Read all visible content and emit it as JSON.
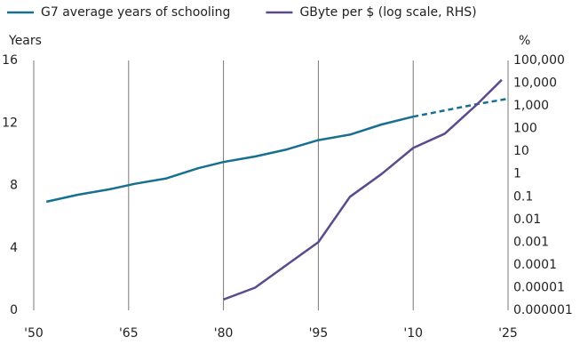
{
  "chart_data": {
    "type": "line",
    "y_label": "Years",
    "y2_label": "%",
    "xlim": [
      1950,
      2025
    ],
    "xticks": [
      {
        "value": 1950,
        "label": "'50"
      },
      {
        "value": 1965,
        "label": "'65"
      },
      {
        "value": 1980,
        "label": "'80"
      },
      {
        "value": 1995,
        "label": "'95"
      },
      {
        "value": 2010,
        "label": "'10"
      },
      {
        "value": 2025,
        "label": "'25"
      }
    ],
    "ylim": [
      0,
      16
    ],
    "yticks": [
      0,
      4,
      8,
      12,
      16
    ],
    "y2_log": true,
    "y2lim": [
      1e-06,
      100000
    ],
    "y2ticks": [
      {
        "value": 1e-06,
        "label": "0.000001"
      },
      {
        "value": 1e-05,
        "label": "0.00001"
      },
      {
        "value": 0.0001,
        "label": "0.0001"
      },
      {
        "value": 0.001,
        "label": "0.001"
      },
      {
        "value": 0.01,
        "label": "0.01"
      },
      {
        "value": 0.1,
        "label": "0.1"
      },
      1,
      10,
      100,
      {
        "value": 1000,
        "label": "1,000"
      },
      {
        "value": 10000,
        "label": "10,000"
      },
      {
        "value": 100000,
        "label": "100,000"
      }
    ],
    "grid": true,
    "series": [
      {
        "name": "G7 average years of schooling",
        "color": "#17708f",
        "x": [
          1952,
          1957,
          1962,
          1966,
          1971,
          1976,
          1980,
          1985,
          1990,
          1995,
          2000,
          2005,
          2010
        ],
        "values": [
          6.95,
          7.4,
          7.75,
          8.1,
          8.45,
          9.1,
          9.5,
          9.85,
          10.3,
          10.9,
          11.25,
          11.9,
          12.4
        ]
      },
      {
        "color": "#17708f",
        "line_style": "dashed",
        "x": [
          2010,
          2015,
          2020,
          2025
        ],
        "values": [
          12.4,
          12.8,
          13.2,
          13.55
        ]
      },
      {
        "name": "GByte per $ (log scale, RHS)",
        "color": "#5b4b8d",
        "axis": "y2",
        "x": [
          1980,
          1985,
          1990,
          1995,
          2000,
          2005,
          2010,
          2015,
          2020,
          2024
        ],
        "values": [
          3e-06,
          1e-05,
          0.0001,
          0.001,
          0.1,
          1,
          14,
          60,
          1100,
          14000
        ]
      }
    ]
  }
}
